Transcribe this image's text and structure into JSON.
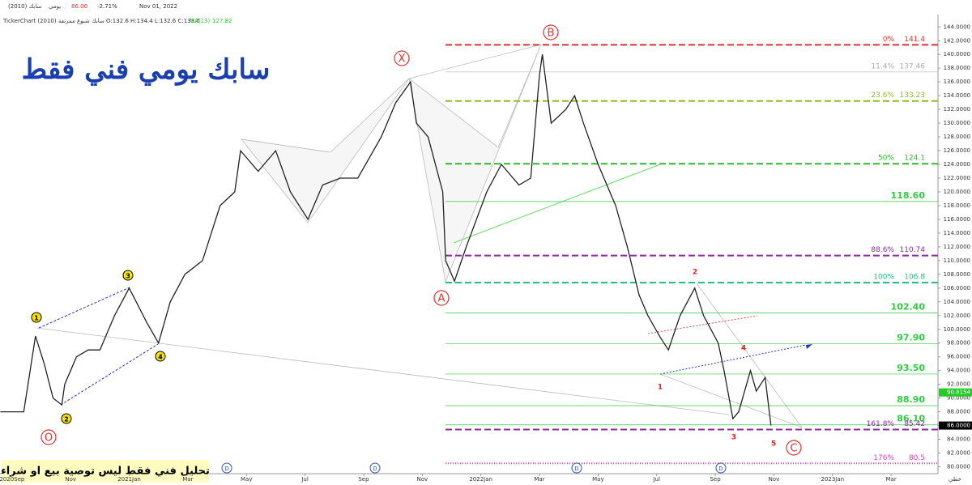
{
  "chart_data": {
    "type": "line",
    "header": {
      "symbol": "سابك (2010)",
      "period": "يومي",
      "price": "86.00",
      "change": "-2.71%",
      "date": "Nov 01, 2022",
      "info": "TickerChart سابك شبوع ممرتفة (2010) O:132.6 H:134.4 L:132.6 C:133.6",
      "ma": "MA(13)",
      "ma_value": "127.82"
    },
    "title": "سابك يومي فني فقط",
    "disclaimer": "تحليل فني فقط ليس توصية بيع او شراء",
    "axis_corner": "خطي",
    "x": [
      -0.4,
      0.4,
      0.8,
      1.1,
      1.4,
      1.7,
      1.8,
      2.2,
      2.6,
      3.0,
      3.5,
      4.0,
      4.6,
      5.0,
      5.4,
      5.9,
      6.5,
      7.1,
      7.6,
      7.8,
      8.4,
      9.0,
      9.5,
      10.1,
      10.6,
      11.2,
      11.8,
      12.6,
      13.1,
      13.6,
      13.8,
      14.2,
      14.7,
      14.8,
      15.1,
      15.5,
      16.2,
      16.7,
      17.3,
      17.7,
      18.0,
      18.1,
      18.4,
      18.9,
      19.2,
      19.5,
      20.0,
      20.6,
      21.0,
      21.4,
      21.7,
      22.1,
      22.4,
      22.8,
      23.3,
      23.6,
      24.1,
      24.3,
      24.6,
      24.8,
      25.2,
      25.4,
      25.7,
      25.9
    ],
    "series": [
      {
        "name": "سابك",
        "color": "#222",
        "values": [
          88,
          88,
          99,
          95,
          90,
          89,
          92,
          96,
          97,
          97,
          102,
          106,
          101,
          98,
          104,
          108,
          110,
          118,
          120,
          126,
          123,
          126,
          120,
          116,
          121,
          122,
          122,
          128,
          133,
          136,
          130,
          128,
          120,
          110,
          107,
          112,
          120,
          124,
          121,
          122,
          137,
          140,
          130,
          132,
          134,
          130,
          124,
          118,
          112,
          105,
          102,
          99,
          97,
          102,
          106,
          102,
          98,
          94,
          87,
          88,
          94,
          91,
          93,
          86
        ]
      }
    ],
    "xlim": [
      -0.41,
      31.6
    ],
    "xticks": [
      {
        "value": 0,
        "label": "2020Sep"
      },
      {
        "value": 2,
        "label": "Nov"
      },
      {
        "value": 4,
        "label": "2021Jan"
      },
      {
        "value": 6,
        "label": "Mar"
      },
      {
        "value": 8,
        "label": "May"
      },
      {
        "value": 10,
        "label": "Jul"
      },
      {
        "value": 12,
        "label": "Sep"
      },
      {
        "value": 14,
        "label": "Nov"
      },
      {
        "value": 16,
        "label": "2022Jan"
      },
      {
        "value": 18,
        "label": "Mar"
      },
      {
        "value": 20,
        "label": "May"
      },
      {
        "value": 22,
        "label": "Jul"
      },
      {
        "value": 24,
        "label": "Sep"
      },
      {
        "value": 26,
        "label": "Nov"
      },
      {
        "value": 28,
        "label": "2023Jan"
      },
      {
        "value": 30,
        "label": "Mar"
      }
    ],
    "ylim": [
      79,
      145.8
    ],
    "yticks": [
      {
        "value": 80,
        "label": "80.0000"
      },
      {
        "value": 82,
        "label": "82.0000"
      },
      {
        "value": 84,
        "label": "84.0000"
      },
      {
        "value": 86,
        "label": "86.0000"
      },
      {
        "value": 88,
        "label": "88.0000"
      },
      {
        "value": 90,
        "label": "90.0000"
      },
      {
        "value": 92,
        "label": "92.0000"
      },
      {
        "value": 94,
        "label": "94.0000"
      },
      {
        "value": 96,
        "label": "96.0000"
      },
      {
        "value": 98,
        "label": "98.0000"
      },
      {
        "value": 100,
        "label": "100.0000"
      },
      {
        "value": 102,
        "label": "102.0000"
      },
      {
        "value": 104,
        "label": "104.0000"
      },
      {
        "value": 106,
        "label": "106.0000"
      },
      {
        "value": 108,
        "label": "108.0000"
      },
      {
        "value": 110,
        "label": "110.0000"
      },
      {
        "value": 112,
        "label": "112.0000"
      },
      {
        "value": 114,
        "label": "114.0000"
      },
      {
        "value": 116,
        "label": "116.0000"
      },
      {
        "value": 118,
        "label": "118.0000"
      },
      {
        "value": 120,
        "label": "120.0000"
      },
      {
        "value": 122,
        "label": "122.0000"
      },
      {
        "value": 124,
        "label": "124.0000"
      },
      {
        "value": 126,
        "label": "126.0000"
      },
      {
        "value": 128,
        "label": "128.0000"
      },
      {
        "value": 130,
        "label": "130.0000"
      },
      {
        "value": 132,
        "label": "132.0000"
      },
      {
        "value": 134,
        "label": "134.0000"
      },
      {
        "value": 136,
        "label": "136.0000"
      },
      {
        "value": 138,
        "label": "138.0000"
      },
      {
        "value": 140,
        "label": "140.0000"
      },
      {
        "value": 142,
        "label": "142.0000"
      },
      {
        "value": 144,
        "label": "144.0000"
      }
    ],
    "levels": [
      {
        "pct": "0%",
        "value": 141.4,
        "color": "#e03030",
        "style": "dash"
      },
      {
        "pct": "11.4%",
        "value": 137.46,
        "color": "#bbbbbb",
        "style": "thin"
      },
      {
        "pct": "23.6%",
        "value": 133.23,
        "color": "#8cbf26",
        "style": "dash"
      },
      {
        "pct": "50%",
        "value": 124.1,
        "color": "#2eb82e",
        "style": "dash"
      },
      {
        "value": 118.6,
        "label": "118.60",
        "color": "#2ecc40",
        "style": "thin"
      },
      {
        "pct": "88.6%",
        "value": 110.74,
        "color": "#8e2a9e",
        "style": "dash"
      },
      {
        "pct": "100%",
        "value": 106.8,
        "color": "#20c080",
        "style": "dash"
      },
      {
        "value": 102.4,
        "label": "102.40",
        "color": "#2ecc40",
        "style": "thin"
      },
      {
        "value": 97.9,
        "label": "97.90",
        "color": "#2ecc40",
        "style": "thin"
      },
      {
        "value": 93.5,
        "label": "93.50",
        "color": "#2ecc40",
        "style": "thin"
      },
      {
        "value": 88.9,
        "label": "88.90",
        "color": "#2ecc40",
        "style": "thin"
      },
      {
        "value": 86.1,
        "label": "86.10",
        "color": "#2ecc40",
        "style": "thin"
      },
      {
        "pct": "161.8%",
        "value": 85.42,
        "color": "#8e2a9e",
        "style": "dash"
      },
      {
        "pct": "176%",
        "value": 80.5,
        "color": "#e040c0",
        "style": "dot"
      }
    ],
    "price_tags": [
      {
        "value": 90.8154,
        "label": "90.8154",
        "color": "#22cc22"
      },
      {
        "value": 86,
        "label": "86.0000",
        "color": "#000000"
      }
    ],
    "points": [
      "X",
      "B",
      "A",
      "C",
      "O"
    ],
    "waves": [
      "1",
      "2",
      "3",
      "4"
    ],
    "subwaves": [
      "1",
      "2",
      "3",
      "4",
      "5"
    ],
    "markers": [
      "D",
      "D",
      "D",
      "D"
    ]
  }
}
